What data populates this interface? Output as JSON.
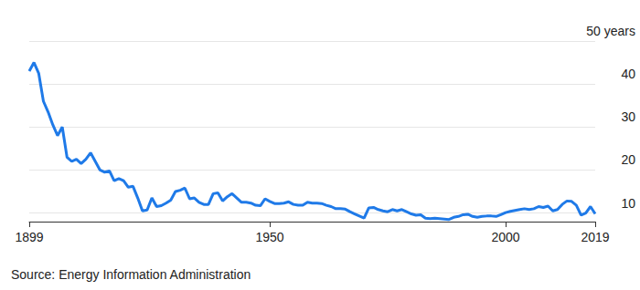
{
  "chart_data": {
    "type": "line",
    "source": "Source: Energy Information Administration",
    "x": [
      1899,
      1900,
      1901,
      1902,
      1903,
      1904,
      1905,
      1906,
      1907,
      1908,
      1909,
      1910,
      1911,
      1912,
      1913,
      1914,
      1915,
      1916,
      1917,
      1918,
      1919,
      1920,
      1921,
      1922,
      1923,
      1924,
      1925,
      1926,
      1927,
      1928,
      1929,
      1930,
      1931,
      1932,
      1933,
      1934,
      1935,
      1936,
      1937,
      1938,
      1939,
      1940,
      1941,
      1942,
      1943,
      1944,
      1945,
      1946,
      1947,
      1948,
      1949,
      1950,
      1951,
      1952,
      1953,
      1954,
      1955,
      1956,
      1957,
      1958,
      1959,
      1960,
      1961,
      1962,
      1963,
      1964,
      1965,
      1966,
      1967,
      1968,
      1969,
      1970,
      1971,
      1972,
      1973,
      1974,
      1975,
      1976,
      1977,
      1978,
      1979,
      1980,
      1981,
      1982,
      1983,
      1984,
      1985,
      1986,
      1987,
      1988,
      1989,
      1990,
      1991,
      1992,
      1993,
      1994,
      1995,
      1996,
      1997,
      1998,
      1999,
      2000,
      2001,
      2002,
      2003,
      2004,
      2005,
      2006,
      2007,
      2008,
      2009,
      2010,
      2011,
      2012,
      2013,
      2014,
      2015,
      2016,
      2017,
      2018,
      2019
    ],
    "values": [
      43,
      45,
      42.5,
      36,
      33.5,
      30.5,
      28,
      30,
      23,
      22,
      22.5,
      21.5,
      22.5,
      24,
      22,
      20,
      19.5,
      19.8,
      17.5,
      18,
      17.5,
      16,
      16.2,
      13.5,
      10.5,
      10.7,
      13.5,
      11.5,
      11.7,
      12.3,
      13,
      15,
      15.3,
      15.8,
      13.3,
      13.5,
      12.5,
      12,
      12,
      14.5,
      14.7,
      12.8,
      13.8,
      14.5,
      13.5,
      12.5,
      12.5,
      12.3,
      11.8,
      11.7,
      13.3,
      12.7,
      12.2,
      12.2,
      12.3,
      12.6,
      12,
      11.8,
      11.8,
      12.5,
      12.3,
      12.3,
      12.2,
      11.8,
      11.5,
      11,
      11,
      10.9,
      10.3,
      9.8,
      9.3,
      8.8,
      11.2,
      11.3,
      10.8,
      10.5,
      10.3,
      10.8,
      10.5,
      10.8,
      10.3,
      9.8,
      9.5,
      9.6,
      8.8,
      8.7,
      8.8,
      8.7,
      8.6,
      8.5,
      9,
      9.2,
      9.6,
      9.7,
      9.2,
      9,
      9.2,
      9.3,
      9.3,
      9.2,
      9.6,
      10.1,
      10.4,
      10.6,
      10.8,
      11,
      10.8,
      11,
      11.5,
      11.3,
      11.6,
      10.5,
      10.8,
      12,
      12.8,
      12.7,
      11.8,
      9.5,
      10,
      11.5,
      9.8
    ],
    "color": "#1f7ae8",
    "xlim": [
      1899,
      2019
    ],
    "xticks": [
      1899,
      1950,
      2000,
      2019
    ],
    "ylim": [
      8,
      50
    ],
    "yticks": [
      {
        "value": 50,
        "label": "50 years"
      },
      40,
      30,
      20,
      10
    ],
    "grid": true
  }
}
